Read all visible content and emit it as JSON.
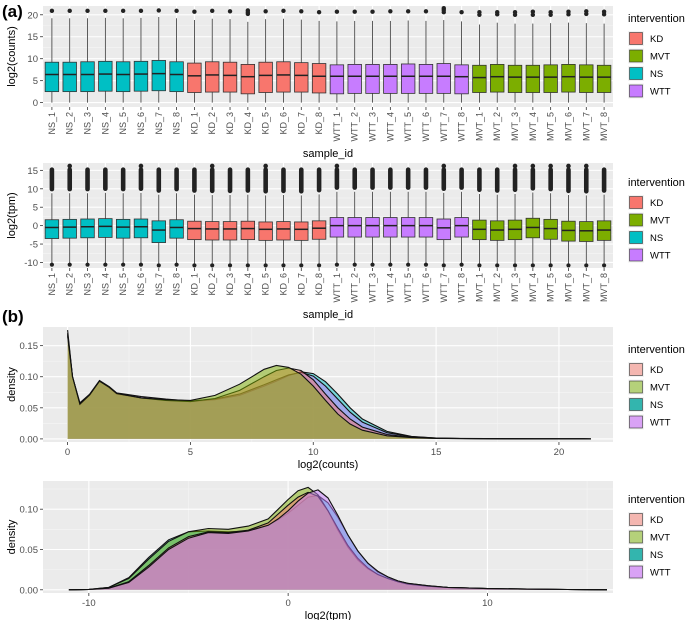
{
  "panel_labels": {
    "a": "(a)",
    "b": "(b)"
  },
  "legend": {
    "title": "intervention",
    "entries": [
      "KD",
      "MVT",
      "NS",
      "WTT"
    ],
    "colors": {
      "KD": "#F8766D",
      "MVT": "#7CAE00",
      "NS": "#00BFC4",
      "WTT": "#C77CFF"
    },
    "colors_density": {
      "KD": "#F4B6B0",
      "MVT": "#B5D17A",
      "NS": "#33B5AE",
      "WTT": "#D9A2F5"
    }
  },
  "chart_data": [
    {
      "type": "boxplot",
      "id": "box_counts",
      "xlabel": "sample_id",
      "ylabel": "log2(counts)",
      "ylim": [
        -1,
        22
      ],
      "yticks": [
        0,
        5,
        10,
        15,
        20
      ],
      "categories": [
        "NS_1",
        "NS_2",
        "NS_3",
        "NS_4",
        "NS_5",
        "NS_6",
        "NS_7",
        "NS_8",
        "KD_1",
        "KD_2",
        "KD_3",
        "KD_4",
        "KD_5",
        "KD_6",
        "KD_7",
        "KD_8",
        "WTT_1",
        "WTT_2",
        "WTT_3",
        "WTT_4",
        "WTT_5",
        "WTT_6",
        "WTT_7",
        "WTT_8",
        "MVT_1",
        "MVT_2",
        "MVT_3",
        "MVT_4",
        "MVT_5",
        "MVT_6",
        "MVT_7",
        "MVT_8"
      ],
      "groups": [
        "NS",
        "NS",
        "NS",
        "NS",
        "NS",
        "NS",
        "NS",
        "NS",
        "KD",
        "KD",
        "KD",
        "KD",
        "KD",
        "KD",
        "KD",
        "KD",
        "WTT",
        "WTT",
        "WTT",
        "WTT",
        "WTT",
        "WTT",
        "WTT",
        "WTT",
        "MVT",
        "MVT",
        "MVT",
        "MVT",
        "MVT",
        "MVT",
        "MVT",
        "MVT"
      ],
      "q1": [
        2.5,
        2.5,
        2.5,
        2.6,
        2.5,
        2.6,
        2.7,
        2.5,
        2.3,
        2.4,
        2.4,
        2.0,
        2.3,
        2.4,
        2.4,
        2.2,
        2.0,
        2.1,
        2.1,
        2.1,
        2.1,
        2.1,
        2.1,
        2.0,
        2.3,
        2.4,
        2.3,
        2.3,
        2.3,
        2.4,
        2.3,
        2.3
      ],
      "median": [
        6.4,
        6.4,
        6.4,
        6.5,
        6.4,
        6.5,
        6.6,
        6.4,
        6.1,
        6.3,
        6.2,
        5.9,
        6.2,
        6.3,
        6.2,
        6.0,
        6.0,
        6.0,
        6.0,
        6.0,
        6.0,
        6.0,
        6.0,
        5.9,
        5.7,
        5.9,
        5.8,
        5.8,
        5.8,
        5.9,
        5.8,
        5.8
      ],
      "q3": [
        9.2,
        9.2,
        9.3,
        9.4,
        9.3,
        9.4,
        9.6,
        9.3,
        9.0,
        9.3,
        9.2,
        8.7,
        9.2,
        9.3,
        9.1,
        8.9,
        8.6,
        8.7,
        8.7,
        8.7,
        8.8,
        8.7,
        8.9,
        8.6,
        8.5,
        8.7,
        8.5,
        8.5,
        8.6,
        8.7,
        8.6,
        8.5
      ],
      "whisker_low": [
        0,
        0,
        0,
        0,
        0,
        0,
        0,
        0,
        0,
        0,
        0,
        0,
        0,
        0,
        0,
        0,
        0,
        0,
        0,
        0,
        0,
        0,
        0,
        0,
        0,
        0,
        0,
        0,
        0,
        0,
        0,
        0
      ],
      "whisker_high": [
        19.2,
        19.2,
        19.2,
        19.3,
        19.2,
        19.3,
        19.5,
        19.2,
        18.8,
        19.1,
        19.0,
        18.4,
        19.0,
        19.1,
        18.9,
        18.6,
        18.5,
        18.6,
        18.6,
        18.6,
        18.7,
        18.6,
        18.8,
        18.5,
        17.8,
        18.2,
        18.0,
        18.0,
        18.1,
        18.2,
        18.1,
        18.0
      ],
      "outliers": [
        [
          20.9
        ],
        [
          20.9
        ],
        [
          20.9
        ],
        [
          20.9
        ],
        [
          20.9
        ],
        [
          20.9
        ],
        [
          21.0
        ],
        [
          20.9
        ],
        [
          20.7
        ],
        [
          20.9
        ],
        [
          20.8
        ],
        [
          20.2,
          20.6,
          21.0
        ],
        [
          20.8
        ],
        [
          20.9
        ],
        [
          20.8
        ],
        [
          20.6
        ],
        [
          20.7
        ],
        [
          20.7
        ],
        [
          20.7
        ],
        [
          20.8
        ],
        [
          20.8
        ],
        [
          20.8
        ],
        [
          20.6,
          21.1,
          21.5
        ],
        [
          20.6
        ],
        [
          20.0,
          20.6
        ],
        [
          20.1,
          20.6
        ],
        [
          20.0,
          20.6
        ],
        [
          20.0,
          20.7
        ],
        [
          20.0,
          20.6
        ],
        [
          20.1,
          20.7
        ],
        [
          20.2,
          20.8
        ],
        [
          20.1,
          20.7
        ]
      ]
    },
    {
      "type": "boxplot",
      "id": "box_tpm",
      "xlabel": "sample_id",
      "ylabel": "log2(tpm)",
      "ylim": [
        -11.5,
        17
      ],
      "yticks": [
        -10,
        -5,
        0,
        5,
        10,
        15
      ],
      "categories": [
        "NS_1",
        "NS_2",
        "NS_3",
        "NS_4",
        "NS_5",
        "NS_6",
        "NS_7",
        "NS_8",
        "KD_1",
        "KD_2",
        "KD_3",
        "KD_4",
        "KD_5",
        "KD_6",
        "KD_7",
        "KD_8",
        "WTT_1",
        "WTT_2",
        "WTT_3",
        "WTT_4",
        "WTT_5",
        "WTT_6",
        "WTT_7",
        "WTT_8",
        "MVT_1",
        "MVT_2",
        "MVT_3",
        "MVT_4",
        "MVT_5",
        "MVT_6",
        "MVT_7",
        "MVT_8"
      ],
      "groups": [
        "NS",
        "NS",
        "NS",
        "NS",
        "NS",
        "NS",
        "NS",
        "NS",
        "KD",
        "KD",
        "KD",
        "KD",
        "KD",
        "KD",
        "KD",
        "KD",
        "WTT",
        "WTT",
        "WTT",
        "WTT",
        "WTT",
        "WTT",
        "WTT",
        "WTT",
        "MVT",
        "MVT",
        "MVT",
        "MVT",
        "MVT",
        "MVT",
        "MVT",
        "MVT"
      ],
      "q1": [
        -3.5,
        -3.4,
        -3.3,
        -3.2,
        -3.4,
        -3.3,
        -4.6,
        -3.4,
        -3.8,
        -3.9,
        -3.9,
        -3.8,
        -4.0,
        -3.9,
        -4.0,
        -3.7,
        -3.1,
        -3.1,
        -3.1,
        -3.1,
        -3.1,
        -3.1,
        -3.8,
        -3.1,
        -3.8,
        -4.0,
        -3.8,
        -3.3,
        -3.7,
        -4.2,
        -4.3,
        -4.0
      ],
      "median": [
        -0.5,
        -0.4,
        -0.3,
        -0.2,
        -0.4,
        -0.3,
        -1.2,
        -0.5,
        -0.8,
        -0.9,
        -0.9,
        -0.8,
        -1.0,
        -0.9,
        -1.0,
        -0.7,
        0.0,
        0.0,
        0.0,
        0.0,
        0.0,
        0.0,
        -0.6,
        0.0,
        -1.0,
        -1.2,
        -1.0,
        -0.5,
        -0.8,
        -1.3,
        -1.4,
        -1.2
      ],
      "q3": [
        1.6,
        1.7,
        1.8,
        1.9,
        1.7,
        1.8,
        1.3,
        1.6,
        1.2,
        1.1,
        1.1,
        1.2,
        1.0,
        1.1,
        1.0,
        1.3,
        2.2,
        2.2,
        2.2,
        2.2,
        2.2,
        2.2,
        1.8,
        2.2,
        1.5,
        1.3,
        1.5,
        2.0,
        1.7,
        1.2,
        1.1,
        1.3
      ],
      "whisker_low": [
        -10.3,
        -10.3,
        -10.3,
        -10.3,
        -10.3,
        -10.3,
        -10.5,
        -10.3,
        -10.5,
        -10.5,
        -10.5,
        -10.5,
        -10.5,
        -10.5,
        -10.5,
        -10.5,
        -10.3,
        -10.3,
        -10.3,
        -10.3,
        -10.3,
        -10.3,
        -10.5,
        -10.3,
        -10.5,
        -10.5,
        -10.5,
        -10.5,
        -10.5,
        -10.5,
        -10.5,
        -10.5
      ],
      "whisker_high": [
        8.8,
        8.8,
        8.8,
        8.9,
        8.8,
        8.9,
        8.4,
        8.8,
        8.4,
        8.3,
        8.3,
        8.4,
        8.2,
        8.3,
        8.2,
        8.5,
        9.2,
        9.2,
        9.2,
        9.2,
        9.2,
        9.2,
        8.9,
        9.2,
        8.6,
        8.4,
        8.6,
        9.0,
        8.8,
        8.3,
        8.2,
        8.4
      ],
      "outlier_band_top": 15.8,
      "outlier_band_top_peak": [
        1,
        5,
        9,
        12,
        16,
        22,
        26,
        27,
        28,
        29,
        30
      ]
    },
    {
      "type": "area",
      "id": "density_counts",
      "xlabel": "log2(counts)",
      "ylabel": "density",
      "xlim": [
        -1,
        22.2
      ],
      "ylim": [
        -0.005,
        0.18
      ],
      "xticks": [
        0,
        5,
        10,
        15,
        20
      ],
      "yticks": [
        0.0,
        0.05,
        0.1,
        0.15
      ],
      "ytick_labels": [
        "0.00",
        "0.05",
        "0.10",
        "0.15"
      ],
      "x": [
        0,
        0.2,
        0.5,
        0.9,
        1.3,
        1.7,
        2,
        3,
        4,
        5,
        6,
        7,
        8,
        8.5,
        9,
        9.5,
        10,
        10.5,
        11,
        11.5,
        12,
        13,
        14,
        15,
        16,
        17,
        18,
        19,
        20,
        21,
        21.3
      ],
      "series": [
        {
          "name": "NS",
          "values": [
            0.175,
            0.1,
            0.055,
            0.07,
            0.093,
            0.082,
            0.072,
            0.066,
            0.062,
            0.06,
            0.063,
            0.07,
            0.085,
            0.093,
            0.102,
            0.108,
            0.105,
            0.092,
            0.072,
            0.05,
            0.032,
            0.012,
            0.004,
            0.0015,
            0.0008,
            0.0004,
            0.0003,
            0.0002,
            0.0001,
            0.0001,
            0
          ]
        },
        {
          "name": "WTT",
          "values": [
            0.168,
            0.1,
            0.058,
            0.072,
            0.094,
            0.084,
            0.074,
            0.068,
            0.064,
            0.061,
            0.064,
            0.072,
            0.087,
            0.095,
            0.103,
            0.107,
            0.101,
            0.085,
            0.064,
            0.043,
            0.027,
            0.01,
            0.0035,
            0.0012,
            0.0006,
            0.0004,
            0.0003,
            0.0002,
            0.0001,
            0.0001,
            0
          ]
        },
        {
          "name": "KD",
          "values": [
            0.17,
            0.1,
            0.056,
            0.071,
            0.093,
            0.083,
            0.073,
            0.066,
            0.062,
            0.06,
            0.065,
            0.078,
            0.1,
            0.11,
            0.114,
            0.11,
            0.095,
            0.072,
            0.05,
            0.032,
            0.019,
            0.007,
            0.0025,
            0.001,
            0.0005,
            0.0003,
            0.0002,
            0.0001,
            0.0001,
            0.0001,
            0
          ]
        },
        {
          "name": "MVT",
          "values": [
            0.165,
            0.1,
            0.056,
            0.071,
            0.093,
            0.083,
            0.073,
            0.066,
            0.063,
            0.062,
            0.07,
            0.088,
            0.112,
            0.118,
            0.115,
            0.104,
            0.085,
            0.062,
            0.04,
            0.024,
            0.014,
            0.005,
            0.002,
            0.0008,
            0.0004,
            0.0003,
            0.0002,
            0.0001,
            0.0001,
            0.0001,
            0
          ]
        }
      ]
    },
    {
      "type": "area",
      "id": "density_tpm",
      "xlabel": "log2(tpm)",
      "ylabel": "density",
      "xlim": [
        -12.3,
        16.3
      ],
      "ylim": [
        -0.004,
        0.135
      ],
      "xticks": [
        -10,
        0,
        10
      ],
      "yticks": [
        0.0,
        0.05,
        0.1
      ],
      "ytick_labels": [
        "0.00",
        "0.05",
        "0.10"
      ],
      "x": [
        -11,
        -10,
        -9,
        -8,
        -7,
        -6,
        -5,
        -4,
        -3,
        -2,
        -1,
        -0.5,
        0,
        0.5,
        1,
        1.5,
        2,
        2.5,
        3,
        3.5,
        4,
        4.5,
        5,
        5.5,
        6,
        7,
        8,
        10,
        12,
        14,
        16
      ],
      "series": [
        {
          "name": "NS",
          "values": [
            0,
            0.0005,
            0.003,
            0.015,
            0.04,
            0.062,
            0.072,
            0.073,
            0.072,
            0.073,
            0.08,
            0.087,
            0.095,
            0.105,
            0.115,
            0.117,
            0.108,
            0.09,
            0.068,
            0.048,
            0.033,
            0.022,
            0.016,
            0.011,
            0.008,
            0.005,
            0.003,
            0.0015,
            0.0008,
            0.0003,
            0
          ]
        },
        {
          "name": "MVT",
          "values": [
            0,
            0.0005,
            0.003,
            0.014,
            0.038,
            0.06,
            0.072,
            0.076,
            0.075,
            0.079,
            0.088,
            0.1,
            0.112,
            0.123,
            0.127,
            0.118,
            0.098,
            0.074,
            0.053,
            0.037,
            0.026,
            0.019,
            0.014,
            0.01,
            0.007,
            0.0045,
            0.003,
            0.0015,
            0.0008,
            0.0003,
            0
          ]
        },
        {
          "name": "KD",
          "values": [
            0,
            0.0004,
            0.002,
            0.01,
            0.03,
            0.052,
            0.066,
            0.072,
            0.071,
            0.074,
            0.083,
            0.094,
            0.105,
            0.115,
            0.121,
            0.116,
            0.098,
            0.076,
            0.055,
            0.039,
            0.027,
            0.019,
            0.014,
            0.01,
            0.007,
            0.0045,
            0.003,
            0.0015,
            0.0008,
            0.0003,
            0
          ]
        },
        {
          "name": "WTT",
          "values": [
            0,
            0.0003,
            0.002,
            0.009,
            0.028,
            0.05,
            0.064,
            0.071,
            0.07,
            0.073,
            0.08,
            0.088,
            0.098,
            0.11,
            0.12,
            0.124,
            0.114,
            0.092,
            0.068,
            0.048,
            0.033,
            0.023,
            0.016,
            0.011,
            0.008,
            0.005,
            0.003,
            0.0015,
            0.0008,
            0.0003,
            0
          ]
        }
      ]
    }
  ]
}
